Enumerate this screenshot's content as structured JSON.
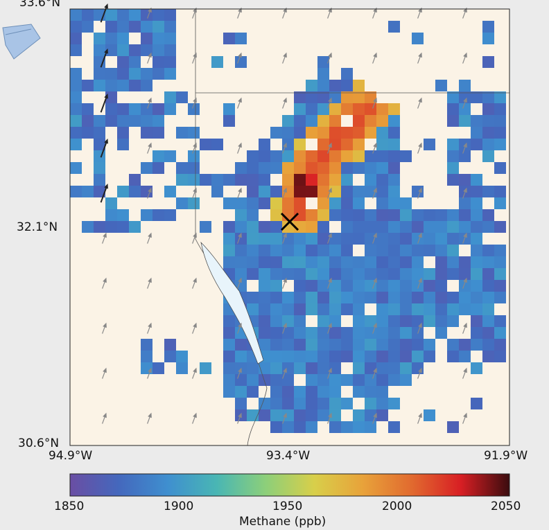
{
  "map": {
    "lat_labels": [
      "33.6°N",
      "32.1°N",
      "30.6°N"
    ],
    "lon_labels": [
      "94.9°W",
      "93.4°W",
      "91.9°W"
    ],
    "source_marker": "X"
  },
  "colorbar": {
    "label": "Methane (ppb)",
    "ticks": [
      "1850",
      "1900",
      "1950",
      "2000",
      "2050"
    ],
    "range": [
      1850,
      2050
    ],
    "colors": [
      "#6a4ea3",
      "#4468bd",
      "#3f8fcf",
      "#49b6b4",
      "#8ccf7a",
      "#d8cf4a",
      "#e8a23a",
      "#e16a2f",
      "#d81f24",
      "#3a0c0e"
    ]
  },
  "colors": {
    "land": "#fbf3e6",
    "page": "#ebebeb",
    "water": "#e8f4fb"
  }
}
